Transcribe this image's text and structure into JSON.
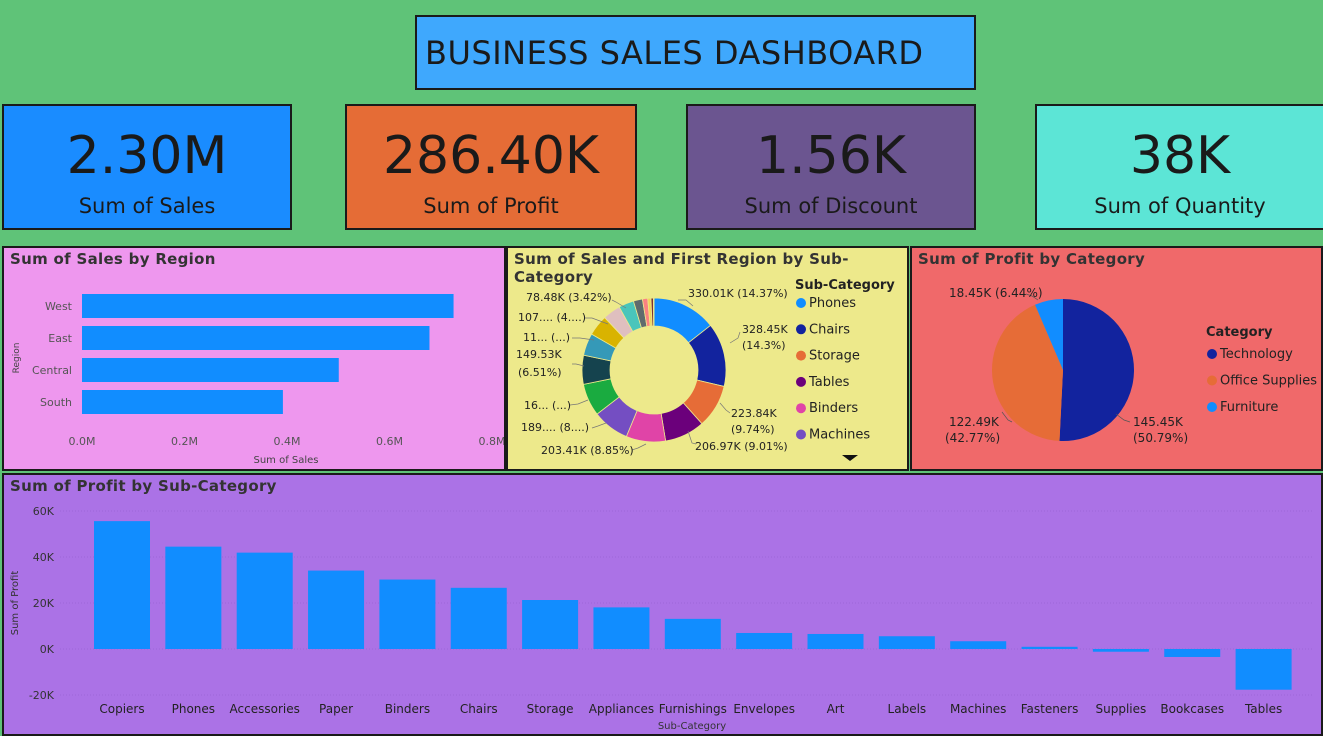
{
  "title": "BUSINESS SALES DASHBOARD",
  "kpis": [
    {
      "value": "2.30M",
      "label": "Sum of Sales",
      "color": "#1a8cff"
    },
    {
      "value": "286.40K",
      "label": "Sum of Profit",
      "color": "#e56c36"
    },
    {
      "value": "1.56K",
      "label": "Sum of Discount",
      "color": "#6b5590"
    },
    {
      "value": "38K",
      "label": "Sum of Quantity",
      "color": "#5ce5d6"
    }
  ],
  "region_chart": {
    "title": "Sum of Sales by Region",
    "xlabel": "Sum of Sales",
    "ylabel": "Region",
    "ticks": [
      "0.0M",
      "0.2M",
      "0.4M",
      "0.6M",
      "0.8M"
    ]
  },
  "donut_chart": {
    "title": "Sum of Sales and First Region by Sub-Category",
    "legend_title": "Sub-Category",
    "legend": [
      {
        "name": "Phones",
        "color": "#118dff"
      },
      {
        "name": "Chairs",
        "color": "#12239e"
      },
      {
        "name": "Storage",
        "color": "#e66c37"
      },
      {
        "name": "Tables",
        "color": "#6b007b"
      },
      {
        "name": "Binders",
        "color": "#e044a7"
      },
      {
        "name": "Machines",
        "color": "#744ec2"
      }
    ],
    "labels": [
      "330.01K (14.37%)",
      "328.45K",
      "(14.3%)",
      "223.84K",
      "(9.74%)",
      "206.97K (9.01%)",
      "203.41K (8.85%)",
      "189.... (8....)",
      "16... (...)",
      "149.53K",
      "(6.51%)",
      "11... (...)",
      "107.... (4....)",
      "78.48K (3.42%)"
    ]
  },
  "pie_chart": {
    "title": "Sum of Profit by Category",
    "legend_title": "Category",
    "legend": [
      {
        "name": "Technology",
        "color": "#12239e"
      },
      {
        "name": "Office Supplies",
        "color": "#e66c37"
      },
      {
        "name": "Furniture",
        "color": "#118dff"
      }
    ],
    "labels": [
      "18.45K (6.44%)",
      "122.49K",
      "(42.77%)",
      "145.45K",
      "(50.79%)"
    ]
  },
  "subcat_chart": {
    "title": "Sum of Profit by Sub-Category",
    "xlabel": "Sub-Category",
    "ylabel": "Sum of Profit",
    "ticks": [
      "60K",
      "40K",
      "20K",
      "0K",
      "-20K"
    ]
  },
  "chart_data": [
    {
      "type": "bar",
      "orientation": "horizontal",
      "title": "Sum of Sales by Region",
      "categories": [
        "West",
        "East",
        "Central",
        "South"
      ],
      "values": [
        0.725,
        0.678,
        0.501,
        0.392
      ],
      "xlabel": "Sum of Sales",
      "ylabel": "Region",
      "xlim": [
        0,
        0.8
      ],
      "unit": "M",
      "color": "#118dff"
    },
    {
      "type": "pie",
      "donut": true,
      "title": "Sum of Sales and First Region by Sub-Category",
      "categories": [
        "Phones",
        "Chairs",
        "Storage",
        "Tables",
        "Binders",
        "Machines",
        "Accessories",
        "Copiers",
        "Bookcases",
        "Appliances",
        "Furnishings",
        "Paper",
        "Supplies",
        "Art",
        "Envelopes",
        "Labels",
        "Fasteners"
      ],
      "values": [
        330.01,
        328.45,
        223.84,
        206.97,
        203.41,
        189.24,
        167.38,
        149.53,
        114.88,
        107.53,
        91.71,
        78.48,
        46.67,
        27.12,
        16.48,
        12.49,
        3.02
      ],
      "colors": [
        "#118dff",
        "#12239e",
        "#e66c37",
        "#6b007b",
        "#e044a7",
        "#744ec2",
        "#1aab40",
        "#15434e",
        "#3599b8",
        "#d9b300",
        "#dfbfbf",
        "#4ac5bb",
        "#5f6b6d",
        "#fb8281",
        "#f4d25a",
        "#7f312f",
        "#834b00"
      ]
    },
    {
      "type": "pie",
      "title": "Sum of Profit by Category",
      "categories": [
        "Technology",
        "Office Supplies",
        "Furniture"
      ],
      "values": [
        145.45,
        122.49,
        18.45
      ],
      "colors": [
        "#12239e",
        "#e66c37",
        "#118dff"
      ]
    },
    {
      "type": "bar",
      "title": "Sum of Profit by Sub-Category",
      "categories": [
        "Copiers",
        "Phones",
        "Accessories",
        "Paper",
        "Binders",
        "Chairs",
        "Storage",
        "Appliances",
        "Furnishings",
        "Envelopes",
        "Art",
        "Labels",
        "Machines",
        "Fasteners",
        "Supplies",
        "Bookcases",
        "Tables"
      ],
      "values": [
        55.6,
        44.5,
        41.9,
        34.1,
        30.2,
        26.6,
        21.3,
        18.1,
        13.1,
        6.96,
        6.53,
        5.55,
        3.38,
        0.95,
        -1.19,
        -3.47,
        -17.7
      ],
      "xlabel": "Sub-Category",
      "ylabel": "Sum of Profit",
      "ylim": [
        -20,
        60
      ],
      "unit": "K",
      "color": "#118dff"
    }
  ]
}
